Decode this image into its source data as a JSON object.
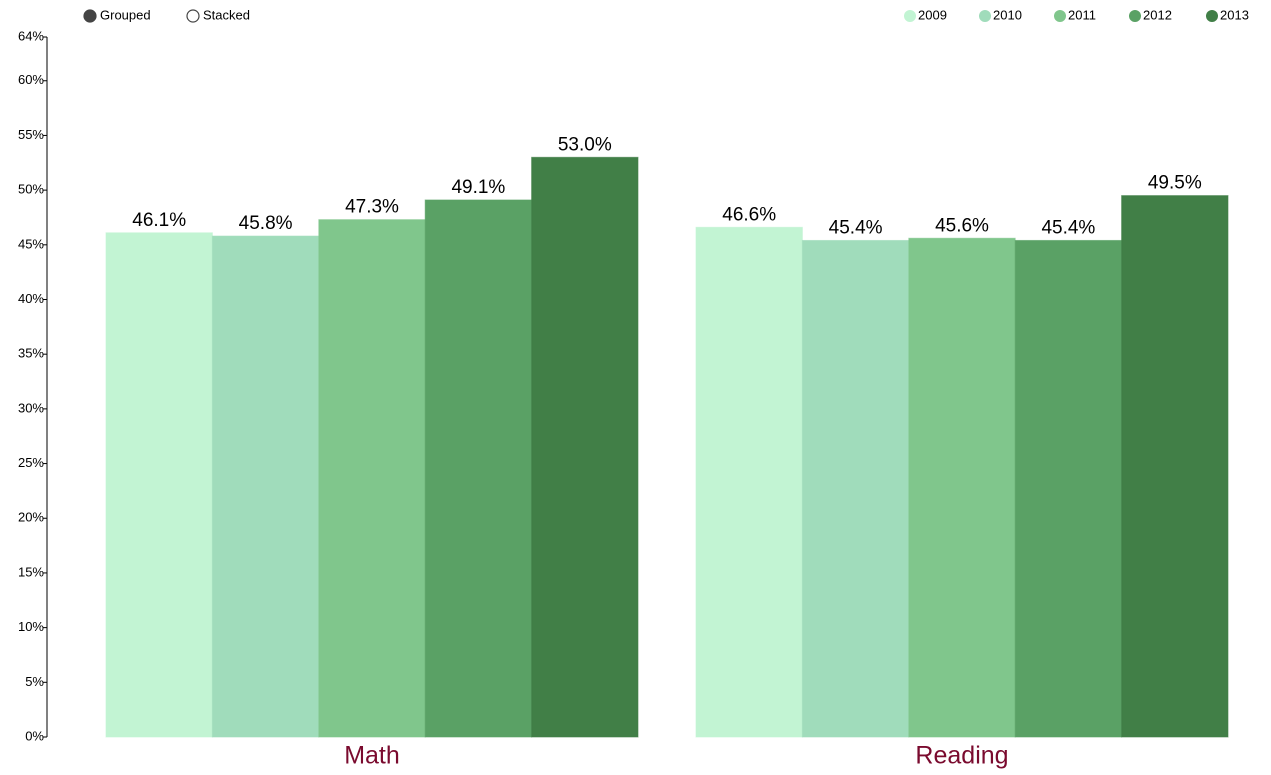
{
  "chart_data": {
    "type": "bar",
    "controls": [
      "Grouped",
      "Stacked"
    ],
    "categories": [
      "Math",
      "Reading"
    ],
    "series": [
      {
        "name": "2009",
        "color": "#c2f4d3",
        "values": [
          46.1,
          46.6
        ],
        "value_labels": [
          "46.1%",
          "46.6%"
        ]
      },
      {
        "name": "2010",
        "color": "#a0dcbb",
        "values": [
          45.8,
          45.4
        ],
        "value_labels": [
          "45.8%",
          "45.4%"
        ]
      },
      {
        "name": "2011",
        "color": "#80c68c",
        "values": [
          47.3,
          45.6
        ],
        "value_labels": [
          "47.3%",
          "45.6%"
        ]
      },
      {
        "name": "2012",
        "color": "#5aa165",
        "values": [
          49.1,
          45.4
        ],
        "value_labels": [
          "49.1%",
          "45.4%"
        ]
      },
      {
        "name": "2013",
        "color": "#417f47",
        "values": [
          53.0,
          49.5
        ],
        "value_labels": [
          "53.0%",
          "49.5%"
        ]
      }
    ],
    "ylim": [
      0,
      64
    ],
    "yticks": [
      {
        "value": 0,
        "label": "0%"
      },
      {
        "value": 5,
        "label": "5%"
      },
      {
        "value": 10,
        "label": "10%"
      },
      {
        "value": 15,
        "label": "15%"
      },
      {
        "value": 20,
        "label": "20%"
      },
      {
        "value": 25,
        "label": "25%"
      },
      {
        "value": 30,
        "label": "30%"
      },
      {
        "value": 35,
        "label": "35%"
      },
      {
        "value": 40,
        "label": "40%"
      },
      {
        "value": 45,
        "label": "45%"
      },
      {
        "value": 50,
        "label": "50%"
      },
      {
        "value": 55,
        "label": "55%"
      },
      {
        "value": 60,
        "label": "60%"
      },
      {
        "value": 64,
        "label": "64%"
      }
    ],
    "grid": false
  }
}
